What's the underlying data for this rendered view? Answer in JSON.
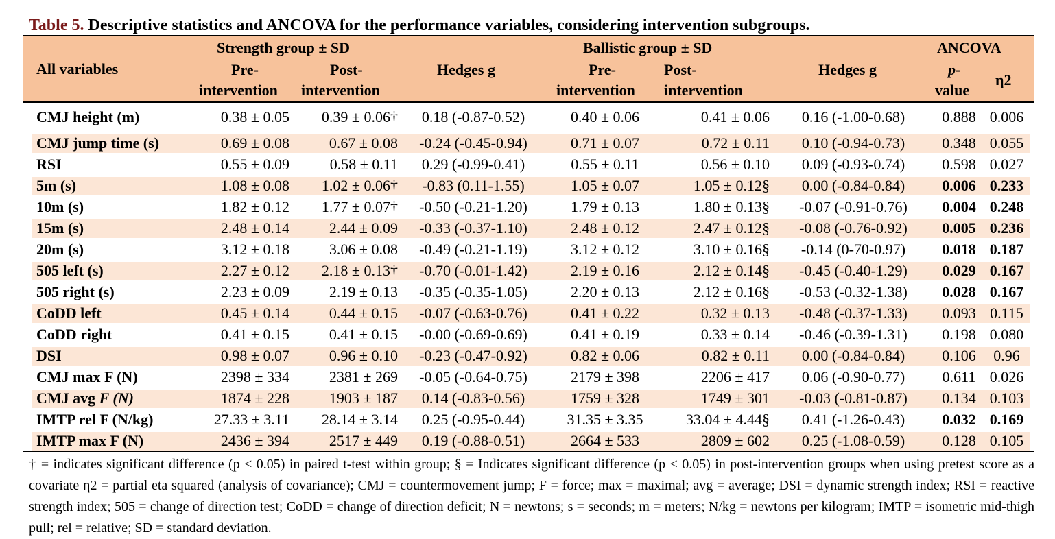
{
  "caption": {
    "label": "Table 5.",
    "text": " Descriptive statistics and ANCOVA for the performance variables, considering intervention subgroups."
  },
  "header": {
    "all_variables": "All variables",
    "strength_group": "Strength group ± SD",
    "ballistic_group": "Ballistic group ± SD",
    "ancova": "ANCOVA",
    "pre_1": "Pre-",
    "pre_2": "intervention",
    "post_1": "Post-",
    "post_2": "intervention",
    "hedges": "Hedges g",
    "pvalue_1": "p-",
    "pvalue_2": "value",
    "eta": "η2"
  },
  "rows": [
    {
      "name": "CMJ height (m)",
      "s_pre": "0.38 ± 0.05",
      "s_post": "0.39 ± 0.06†",
      "s_g": "0.18 (-0.87-0.52)",
      "b_pre": "0.40 ± 0.06",
      "b_post": "0.41 ± 0.06",
      "b_g": "0.16 (-1.00-0.68)",
      "p": "0.888",
      "eta": "0.006",
      "bold": false
    },
    {
      "name": "CMJ jump time (s)",
      "s_pre": "0.69 ± 0.08",
      "s_post": "0.67 ± 0.08",
      "s_g": "-0.24 (-0.45-0.94)",
      "b_pre": "0.71 ± 0.07",
      "b_post": "0.72 ± 0.11",
      "b_g": "0.10 (-0.94-0.73)",
      "p": "0.348",
      "eta": "0.055",
      "bold": false
    },
    {
      "name": "RSI",
      "s_pre": "0.55 ± 0.09",
      "s_post": "0.58 ± 0.11",
      "s_g": "0.29 (-0.99-0.41)",
      "b_pre": "0.55 ± 0.11",
      "b_post": "0.56 ± 0.10",
      "b_g": "0.09 (-0.93-0.74)",
      "p": "0.598",
      "eta": "0.027",
      "bold": false
    },
    {
      "name": "5m (s)",
      "s_pre": "1.08 ± 0.08",
      "s_post": "1.02 ± 0.06†",
      "s_g": "-0.83 (0.11-1.55)",
      "b_pre": "1.05 ± 0.07",
      "b_post": "1.05 ± 0.12§",
      "b_g": "0.00 (-0.84-0.84)",
      "p": "0.006",
      "eta": "0.233",
      "bold": true
    },
    {
      "name": "10m (s)",
      "s_pre": "1.82 ± 0.12",
      "s_post": "1.77 ± 0.07†",
      "s_g": "-0.50 (-0.21-1.20)",
      "b_pre": "1.79 ± 0.13",
      "b_post": "1.80 ± 0.13§",
      "b_g": "-0.07 (-0.91-0.76)",
      "p": "0.004",
      "eta": "0.248",
      "bold": true
    },
    {
      "name": "15m (s)",
      "s_pre": "2.48 ± 0.14",
      "s_post": "2.44 ± 0.09",
      "s_g": "-0.33 (-0.37-1.10)",
      "b_pre": "2.48 ± 0.12",
      "b_post": "2.47 ± 0.12§",
      "b_g": "-0.08 (-0.76-0.92)",
      "p": "0.005",
      "eta": "0.236",
      "bold": true
    },
    {
      "name": "20m (s)",
      "s_pre": "3.12 ± 0.18",
      "s_post": "3.06 ± 0.08",
      "s_g": "-0.49 (-0.21-1.19)",
      "b_pre": "3.12 ± 0.12",
      "b_post": "3.10 ± 0.16§",
      "b_g": "-0.14 (0-70-0.97)",
      "p": "0.018",
      "eta": "0.187",
      "bold": true
    },
    {
      "name": "505 left (s)",
      "s_pre": "2.27 ± 0.12",
      "s_post": "2.18 ± 0.13†",
      "s_g": "-0.70 (-0.01-1.42)",
      "b_pre": "2.19 ± 0.16",
      "b_post": "2.12 ± 0.14§",
      "b_g": "-0.45 (-0.40-1.29)",
      "p": "0.029",
      "eta": "0.167",
      "bold": true
    },
    {
      "name": "505 right (s)",
      "s_pre": "2.23 ± 0.09",
      "s_post": "2.19 ± 0.13",
      "s_g": "-0.35 (-0.35-1.05)",
      "b_pre": "2.20 ± 0.13",
      "b_post": "2.12 ± 0.16§",
      "b_g": "-0.53 (-0.32-1.38)",
      "p": "0.028",
      "eta": "0.167",
      "bold": true
    },
    {
      "name": "CoDD left",
      "s_pre": "0.45 ± 0.14",
      "s_post": "0.44 ± 0.15",
      "s_g": "-0.07 (-0.63-0.76)",
      "b_pre": "0.41 ± 0.22",
      "b_post": "0.32 ± 0.13",
      "b_g": "-0.48 (-0.37-1.33)",
      "p": "0.093",
      "eta": "0.115",
      "bold": false
    },
    {
      "name": "CoDD right",
      "s_pre": "0.41 ± 0.15",
      "s_post": "0.41 ± 0.15",
      "s_g": "-0.00 (-0.69-0.69)",
      "b_pre": "0.41 ± 0.19",
      "b_post": "0.33 ± 0.14",
      "b_g": "-0.46 (-0.39-1.31)",
      "p": "0.198",
      "eta": "0.080",
      "bold": false
    },
    {
      "name": "DSI",
      "s_pre": "0.98 ± 0.07",
      "s_post": "0.96 ± 0.10",
      "s_g": "-0.23 (-0.47-0.92)",
      "b_pre": "0.82 ± 0.06",
      "b_post": "0.82 ± 0.11",
      "b_g": "0.00 (-0.84-0.84)",
      "p": "0.106",
      "eta": "0.96",
      "bold": false
    },
    {
      "name": "CMJ max F (N)",
      "s_pre": "2398 ± 334",
      "s_post": "2381 ± 269",
      "s_g": "-0.05 (-0.64-0.75)",
      "b_pre": "2179 ± 398",
      "b_post": "2206 ± 417",
      "b_g": "0.06 (-0.90-0.77)",
      "p": "0.611",
      "eta": "0.026",
      "bold": false
    },
    {
      "name": "CMJ avg ",
      "name_italic": "F (N)",
      "s_pre": "1874 ± 228",
      "s_post": "1903 ± 187",
      "s_g": "0.14 (-0.83-0.56)",
      "b_pre": "1759 ± 328",
      "b_post": "1749 ± 301",
      "b_g": "-0.03 (-0.81-0.87)",
      "p": "0.134",
      "eta": "0.103",
      "bold": false
    },
    {
      "name": "IMTP rel F (N/kg)",
      "s_pre": "27.33 ± 3.11",
      "s_post": "28.14 ± 3.14",
      "s_g": "0.25 (-0.95-0.44)",
      "b_pre": "31.35 ± 3.35",
      "b_post": "33.04 ± 4.44§",
      "b_g": "0.41 (-1.26-0.43)",
      "p": "0.032",
      "eta": "0.169",
      "bold": true
    },
    {
      "name": "IMTP max F (N)",
      "s_pre": "2436 ± 394",
      "s_post": "2517 ± 449",
      "s_g": "0.19 (-0.88-0.51)",
      "b_pre": "2664 ± 533",
      "b_post": "2809 ± 602",
      "b_g": "0.25 (-1.08-0.59)",
      "p": "0.128",
      "eta": "0.105",
      "bold": false
    }
  ],
  "footnote": "† = indicates significant difference (p < 0.05) in paired t-test within group; § = Indicates significant difference (p < 0.05) in post-intervention groups when using pretest score as a covariate η2 = partial eta squared (analysis of covariance); CMJ = countermovement jump; F = force; max = maximal; avg = average; DSI = dynamic strength index; RSI = reactive strength index; 505 = change of direction test; CoDD = change of direction deficit; N = newtons; s = seconds; m = meters; N/kg = newtons per kilogram; IMTP = isometric mid-thigh pull; rel = relative; SD = standard deviation.",
  "colors": {
    "header_bg": "#f7c29b",
    "band_bg": "#fce6d6",
    "caption_label": "#7b1b1b"
  }
}
